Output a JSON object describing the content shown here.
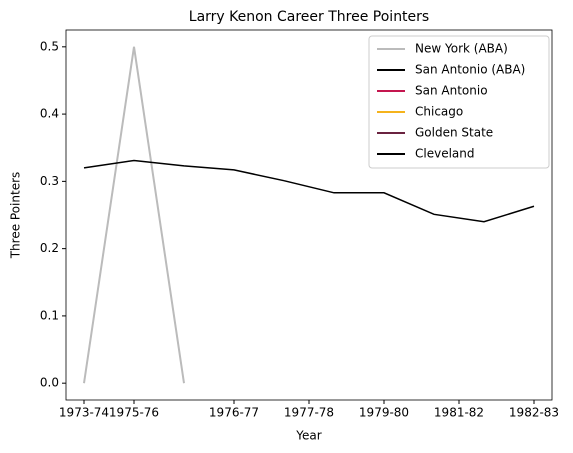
{
  "chart_data": {
    "type": "line",
    "title": "Larry Kenon Career Three Pointers",
    "xlabel": "Year",
    "ylabel": "Three Pointers",
    "x": [
      0,
      1,
      2,
      3,
      4,
      5,
      6,
      7,
      8,
      9
    ],
    "xlim": [
      -0.36,
      9.36
    ],
    "xticks": [
      {
        "value": 0,
        "label": "1973-74"
      },
      {
        "value": 1,
        "label": "1975-76"
      },
      {
        "value": 3,
        "label": "1976-77"
      },
      {
        "value": 4.5,
        "label": "1977-78"
      },
      {
        "value": 6,
        "label": "1979-80"
      },
      {
        "value": 7.5,
        "label": "1981-82"
      },
      {
        "value": 9,
        "label": "1982-83"
      }
    ],
    "ylim": [
      -0.025,
      0.525
    ],
    "yticks": [
      {
        "value": 0,
        "label": "0.0"
      },
      0.1,
      0.2,
      0.3,
      0.4,
      0.5
    ],
    "legend": "upper right",
    "series": [
      {
        "name": "New York (ABA)",
        "color": "#bbbbbb",
        "linewidth": 2,
        "values": [
          0,
          0.5,
          0,
          null,
          null,
          null,
          null,
          null,
          null,
          null
        ]
      },
      {
        "name": "San Antonio (ABA)",
        "color": "#000000",
        "linewidth": 1.5,
        "values": [
          0.32,
          0.331,
          0.323,
          0.317,
          0.301,
          null,
          null,
          null,
          null,
          null
        ]
      },
      {
        "name": "San Antonio",
        "color": "#c4164f",
        "linewidth": 2,
        "values": [
          null,
          null,
          null,
          null,
          null,
          null,
          null,
          null,
          null,
          null
        ]
      },
      {
        "name": "Chicago",
        "color": "#f5b31c",
        "linewidth": 2,
        "values": [
          null,
          null,
          null,
          null,
          null,
          null,
          null,
          null,
          null,
          null
        ]
      },
      {
        "name": "Golden State",
        "color": "#6a2340",
        "linewidth": 2,
        "values": [
          null,
          null,
          null,
          null,
          null,
          null,
          null,
          null,
          null,
          null
        ]
      },
      {
        "name": "Cleveland",
        "color": "#000000",
        "linewidth": 1.5,
        "values": [
          null,
          null,
          null,
          null,
          0.301,
          0.283,
          0.283,
          0.251,
          0.24,
          0.263
        ]
      }
    ]
  }
}
